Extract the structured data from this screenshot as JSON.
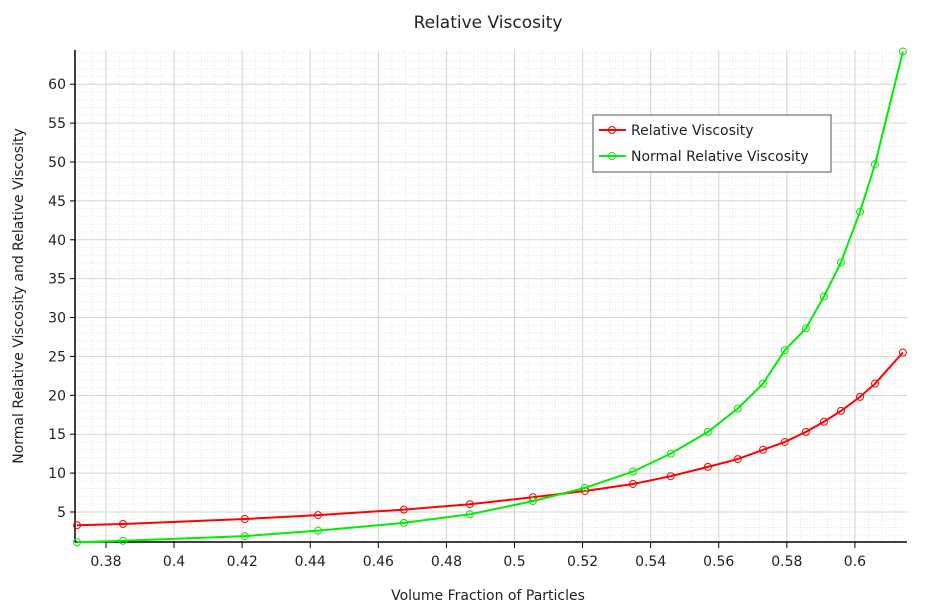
{
  "chart_data": {
    "type": "line",
    "title": "Relative Viscosity",
    "xlabel": "Volume Fraction of Particles",
    "ylabel": "Normal Relative Viscosity and Relative Viscosity",
    "xlim": [
      0.3709,
      0.6153
    ],
    "ylim": [
      1.14,
      64.4
    ],
    "xticks": [
      0.38,
      0.4,
      0.42,
      0.44,
      0.46,
      0.48,
      0.5,
      0.52,
      0.54,
      0.56,
      0.58,
      0.6
    ],
    "xtick_labels": [
      "0.38",
      "0.4",
      "0.42",
      "0.44",
      "0.46",
      "0.48",
      "0.5",
      "0.52",
      "0.54",
      "0.56",
      "0.58",
      "0.6"
    ],
    "yticks": [
      5,
      10,
      15,
      20,
      25,
      30,
      35,
      40,
      45,
      50,
      55,
      60
    ],
    "ytick_labels": [
      "5",
      "10",
      "15",
      "20",
      "25",
      "30",
      "35",
      "40",
      "45",
      "50",
      "55",
      "60"
    ],
    "grid": true,
    "legend_position": "top-right",
    "x": [
      0.3715,
      0.385,
      0.4208,
      0.4423,
      0.4675,
      0.4869,
      0.5054,
      0.5207,
      0.5348,
      0.5459,
      0.5568,
      0.5656,
      0.573,
      0.5794,
      0.5856,
      0.5909,
      0.5959,
      0.6015,
      0.6059,
      0.6141
    ],
    "series": [
      {
        "name": "Relative Viscosity",
        "color": "#ff0000",
        "values": [
          3.3,
          3.46,
          4.1,
          4.6,
          5.3,
          6.0,
          6.9,
          7.7,
          8.6,
          9.6,
          10.8,
          11.8,
          13.0,
          14.0,
          15.3,
          16.6,
          18.0,
          19.8,
          21.5,
          25.5
        ]
      },
      {
        "name": "Normal Relative Viscosity",
        "color": "#00ee00",
        "values": [
          1.1,
          1.3,
          1.9,
          2.6,
          3.6,
          4.7,
          6.4,
          8.1,
          10.2,
          12.5,
          15.3,
          18.3,
          21.5,
          25.8,
          28.6,
          32.7,
          37.1,
          43.6,
          49.7,
          64.2
        ]
      }
    ]
  }
}
